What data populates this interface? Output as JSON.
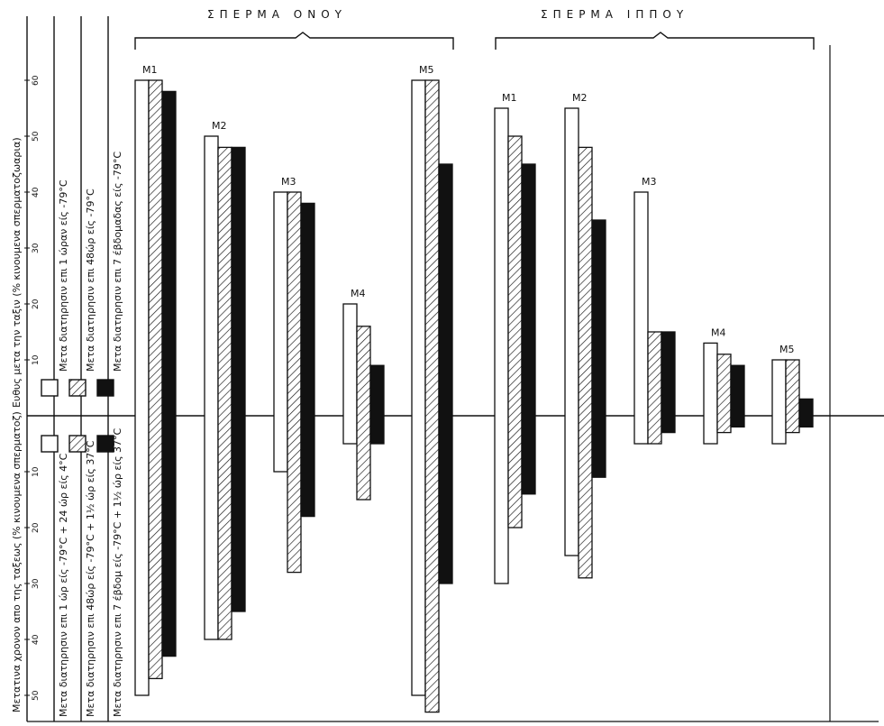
{
  "chart_data": {
    "type": "bar",
    "title_left": "ΣΠΕΡΜΑ ΟΝΟΥ",
    "title_right": "ΣΠΕΡΜΑ ΙΠΠΟΥ",
    "ylabel_upper": "Ευθυς μετα την ταξιν (% κινουμενα σπερματοζωαρια)",
    "ylabel_lower": "Μετατινα χρονον απο της ταξεως (% κινουμενα σπερματοζ)",
    "y_ticks_upper": [
      "10",
      "20",
      "30",
      "40",
      "50",
      "60"
    ],
    "y_ticks_lower": [
      "10",
      "20",
      "30",
      "40",
      "50"
    ],
    "ylim": [
      -55,
      62
    ],
    "legend": [
      {
        "key": "white",
        "pattern": "white",
        "upper": "Μετα διατηρησιν επι 1 ώραν είς -79°C",
        "lower": "Μετα διατηρησιν επι 1 ώρ είς -79°C + 24 ώρ είς 4°C"
      },
      {
        "key": "hatched",
        "pattern": "hatched",
        "upper": "Μετα διατηρησιν επι 48ώρ είς -79°C",
        "lower": "Μετα διατηρησιν επι 48ώρ είς -79°C + 1½ ώρ είς 37°C"
      },
      {
        "key": "black",
        "pattern": "black",
        "upper": "Μετα διατηρησιν επι 7 έβδομαδας είς -79°C",
        "lower": "Μετα διατηρησιν επι 7 έβδομ είς -79°C + 1½ ώρ είς 37°C"
      }
    ],
    "groups": [
      {
        "section": "left",
        "label": "M1",
        "bars": [
          {
            "pattern": "white",
            "up": 60,
            "down": 50
          },
          {
            "pattern": "hatched",
            "up": 60,
            "down": 47
          },
          {
            "pattern": "black",
            "up": 58,
            "down": 43
          }
        ]
      },
      {
        "section": "left",
        "label": "M2",
        "bars": [
          {
            "pattern": "white",
            "up": 50,
            "down": 40
          },
          {
            "pattern": "hatched",
            "up": 48,
            "down": 40
          },
          {
            "pattern": "black",
            "up": 48,
            "down": 35
          }
        ]
      },
      {
        "section": "left",
        "label": "M3",
        "bars": [
          {
            "pattern": "white",
            "up": 40,
            "down": 10
          },
          {
            "pattern": "hatched",
            "up": 40,
            "down": 28
          },
          {
            "pattern": "black",
            "up": 38,
            "down": 18
          }
        ]
      },
      {
        "section": "left",
        "label": "M4",
        "bars": [
          {
            "pattern": "white",
            "up": 20,
            "down": 5
          },
          {
            "pattern": "hatched",
            "up": 16,
            "down": 15
          },
          {
            "pattern": "black",
            "up": 9,
            "down": 5
          }
        ]
      },
      {
        "section": "left",
        "label": "M5",
        "bars": [
          {
            "pattern": "white",
            "up": 60,
            "down": 50
          },
          {
            "pattern": "hatched",
            "up": 60,
            "down": 53
          },
          {
            "pattern": "black",
            "up": 45,
            "down": 30
          }
        ]
      },
      {
        "section": "right",
        "label": "M1",
        "bars": [
          {
            "pattern": "white",
            "up": 55,
            "down": 30
          },
          {
            "pattern": "hatched",
            "up": 50,
            "down": 20
          },
          {
            "pattern": "black",
            "up": 45,
            "down": 14
          }
        ]
      },
      {
        "section": "right",
        "label": "M2",
        "bars": [
          {
            "pattern": "white",
            "up": 55,
            "down": 25
          },
          {
            "pattern": "hatched",
            "up": 48,
            "down": 29
          },
          {
            "pattern": "black",
            "up": 35,
            "down": 11
          }
        ]
      },
      {
        "section": "right",
        "label": "M3",
        "bars": [
          {
            "pattern": "white",
            "up": 40,
            "down": 5
          },
          {
            "pattern": "hatched",
            "up": 15,
            "down": 5
          },
          {
            "pattern": "black",
            "up": 15,
            "down": 3
          }
        ]
      },
      {
        "section": "right",
        "label": "M4",
        "bars": [
          {
            "pattern": "white",
            "up": 13,
            "down": 5
          },
          {
            "pattern": "hatched",
            "up": 11,
            "down": 3
          },
          {
            "pattern": "black",
            "up": 9,
            "down": 2
          }
        ]
      },
      {
        "section": "right",
        "label": "M5",
        "bars": [
          {
            "pattern": "white",
            "up": 10,
            "down": 5
          },
          {
            "pattern": "hatched",
            "up": 10,
            "down": 3
          },
          {
            "pattern": "black",
            "up": 3,
            "down": 2
          }
        ]
      }
    ]
  }
}
